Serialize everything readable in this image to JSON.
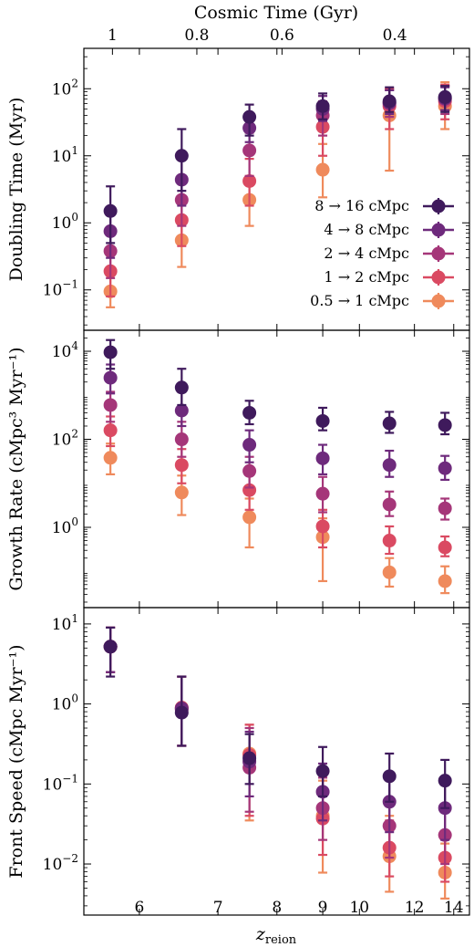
{
  "figure": {
    "top_axis_title": "Cosmic Time (Gyr)",
    "top_ticks": [
      {
        "label": "1",
        "z": 5.72
      },
      {
        "label": "0.8",
        "z": 6.7
      },
      {
        "label": "0.6",
        "z": 8.1
      },
      {
        "label": "0.4",
        "z": 11.2
      }
    ],
    "xlabel": "z",
    "xlabel_sub": "reion",
    "x_ticks": [
      {
        "label": "6",
        "z": 6
      },
      {
        "label": "7",
        "z": 7
      },
      {
        "label": "8",
        "z": 8
      },
      {
        "label": "9",
        "z": 9
      },
      {
        "label": "10",
        "z": 10
      },
      {
        "label": "12",
        "z": 12
      },
      {
        "label": "14",
        "z": 14
      }
    ],
    "xaxis_scale": "reciprocal (1/z)",
    "xlim": [
      5.45,
      15.0
    ]
  },
  "legend": {
    "placement": "lower-right of top panel",
    "entries": [
      {
        "label": "8 → 16 cMpc",
        "color": "#3f1a5c"
      },
      {
        "label": "4 → 8 cMpc",
        "color": "#6e2a7c"
      },
      {
        "label": "2 → 4 cMpc",
        "color": "#a53679"
      },
      {
        "label": "1 → 2 cMpc",
        "color": "#da4a62"
      },
      {
        "label": "0.5 → 1 cMpc",
        "color": "#ef8a5c"
      }
    ]
  },
  "chart_data": [
    {
      "type": "scatter",
      "panel": "top",
      "ylabel": "Doubling Time (Myr)",
      "yscale": "log",
      "ylim": [
        0.025,
        400
      ],
      "y_ticks": [
        {
          "base": "10",
          "exp": "−1",
          "value": 0.1
        },
        {
          "base": "10",
          "exp": "0",
          "value": 1
        },
        {
          "base": "10",
          "exp": "1",
          "value": 10
        },
        {
          "base": "10",
          "exp": "2",
          "value": 100
        }
      ],
      "x": [
        5.7,
        6.5,
        7.5,
        9.0,
        11.0,
        13.5
      ],
      "series": [
        {
          "name": "8 → 16 cMpc",
          "values": [
            1.5,
            10,
            38,
            55,
            65,
            75
          ],
          "err_low": [
            0.5,
            3,
            20,
            35,
            45,
            45
          ],
          "err_high": [
            3.5,
            25,
            58,
            85,
            105,
            110
          ]
        },
        {
          "name": "4 → 8 cMpc",
          "values": [
            0.75,
            4.4,
            26,
            50,
            62,
            72
          ],
          "err_low": [
            0.3,
            1.8,
            16,
            33,
            42,
            48
          ],
          "err_high": [
            1.5,
            9,
            40,
            78,
            95,
            105
          ]
        },
        {
          "name": "2 → 4 cMpc",
          "values": [
            0.38,
            2.2,
            12,
            40,
            60,
            70
          ],
          "err_low": [
            0.15,
            0.9,
            5,
            20,
            38,
            42
          ],
          "err_high": [
            0.8,
            5,
            22,
            65,
            95,
            110
          ]
        },
        {
          "name": "1 → 2 cMpc",
          "values": [
            0.19,
            1.1,
            4.2,
            27,
            55,
            65
          ],
          "err_low": [
            0.08,
            0.45,
            1.8,
            10,
            25,
            35
          ],
          "err_high": [
            0.4,
            2.5,
            9,
            50,
            100,
            115
          ]
        },
        {
          "name": "0.5 → 1 cMpc",
          "values": [
            0.095,
            0.55,
            2.2,
            6.2,
            40,
            55
          ],
          "err_low": [
            0.055,
            0.22,
            0.9,
            2.4,
            6,
            25
          ],
          "err_high": [
            0.2,
            1.2,
            5,
            15,
            100,
            125
          ]
        }
      ]
    },
    {
      "type": "scatter",
      "panel": "middle",
      "ylabel": "Growth Rate (cMpc³ Myr⁻¹)",
      "yscale": "log",
      "ylim": [
        0.015,
        30000
      ],
      "y_ticks": [
        {
          "base": "10",
          "exp": "0",
          "value": 1
        },
        {
          "base": "10",
          "exp": "2",
          "value": 100
        },
        {
          "base": "10",
          "exp": "4",
          "value": 10000
        }
      ],
      "x": [
        5.7,
        6.5,
        7.5,
        9.0,
        11.0,
        13.5
      ],
      "series": [
        {
          "name": "8 → 16 cMpc",
          "values": [
            9500,
            1500,
            400,
            260,
            230,
            210
          ],
          "err_low": [
            4000,
            600,
            220,
            160,
            140,
            130
          ],
          "err_high": [
            18000,
            4000,
            750,
            520,
            420,
            400
          ]
        },
        {
          "name": "4 → 8 cMpc",
          "values": [
            2500,
            450,
            75,
            37,
            26,
            22
          ],
          "err_low": [
            1100,
            200,
            30,
            16,
            14,
            12
          ],
          "err_high": [
            5000,
            1200,
            160,
            75,
            55,
            42
          ]
        },
        {
          "name": "2 → 4 cMpc",
          "values": [
            600,
            100,
            19,
            5.8,
            3.3,
            2.7
          ],
          "err_low": [
            250,
            40,
            8,
            2.2,
            1.8,
            1.5
          ],
          "err_high": [
            1200,
            250,
            40,
            14,
            6.5,
            4.5
          ]
        },
        {
          "name": "1 → 2 cMpc",
          "values": [
            160,
            26,
            7,
            1.05,
            0.5,
            0.35
          ],
          "err_low": [
            70,
            10,
            2.5,
            0.35,
            0.25,
            0.22
          ],
          "err_high": [
            330,
            60,
            16,
            2.5,
            1.05,
            0.62
          ]
        },
        {
          "name": "0.5 → 1 cMpc",
          "values": [
            38,
            6.2,
            1.7,
            0.6,
            0.095,
            0.06
          ],
          "err_low": [
            16,
            1.9,
            0.35,
            0.06,
            0.045,
            0.032
          ],
          "err_high": [
            80,
            15,
            4.5,
            1.6,
            0.2,
            0.13
          ]
        }
      ]
    },
    {
      "type": "scatter",
      "panel": "bottom",
      "ylabel": "Front Speed (cMpc Myr⁻¹)",
      "yscale": "log",
      "ylim": [
        0.0023,
        16
      ],
      "y_ticks": [
        {
          "base": "10",
          "exp": "−2",
          "value": 0.01
        },
        {
          "base": "10",
          "exp": "−1",
          "value": 0.1
        },
        {
          "base": "10",
          "exp": "0",
          "value": 1
        },
        {
          "base": "10",
          "exp": "1",
          "value": 10
        }
      ],
      "x": [
        5.7,
        6.5,
        7.5,
        9.0,
        11.0,
        13.5
      ],
      "series": [
        {
          "name": "8 → 16 cMpc",
          "values": [
            5.2,
            0.78,
            0.21,
            0.145,
            0.125,
            0.11
          ],
          "err_low": [
            2.2,
            0.3,
            0.1,
            0.07,
            0.06,
            0.05
          ],
          "err_high": [
            9,
            2.2,
            0.42,
            0.29,
            0.24,
            0.2
          ]
        },
        {
          "name": "4 → 8 cMpc",
          "values": [
            5.2,
            0.88,
            0.19,
            0.08,
            0.06,
            0.05
          ],
          "err_low": [
            2.5,
            0.3,
            0.07,
            0.035,
            0.025,
            0.02
          ],
          "err_high": [
            9,
            2.2,
            0.45,
            0.18,
            0.13,
            0.1
          ]
        },
        {
          "name": "2 → 4 cMpc",
          "values": [
            5.2,
            0.85,
            0.16,
            0.05,
            0.03,
            0.023
          ],
          "err_low": [
            2.5,
            0.3,
            0.045,
            0.02,
            0.012,
            0.01
          ],
          "err_high": [
            9,
            2.2,
            0.5,
            0.12,
            0.065,
            0.05
          ]
        },
        {
          "name": "1 → 2 cMpc",
          "values": [
            5.2,
            0.9,
            0.23,
            0.037,
            0.016,
            0.012
          ],
          "err_low": [
            2.5,
            0.3,
            0.04,
            0.013,
            0.007,
            0.006
          ],
          "err_high": [
            9,
            2.2,
            0.55,
            0.09,
            0.035,
            0.025
          ]
        },
        {
          "name": "0.5 → 1 cMpc",
          "values": [
            5.2,
            0.9,
            0.24,
            0.04,
            0.0125,
            0.0078
          ],
          "err_low": [
            2.5,
            0.3,
            0.035,
            0.0078,
            0.0045,
            0.0037
          ],
          "err_high": [
            9,
            2.2,
            0.55,
            0.11,
            0.04,
            0.018
          ]
        }
      ]
    }
  ]
}
